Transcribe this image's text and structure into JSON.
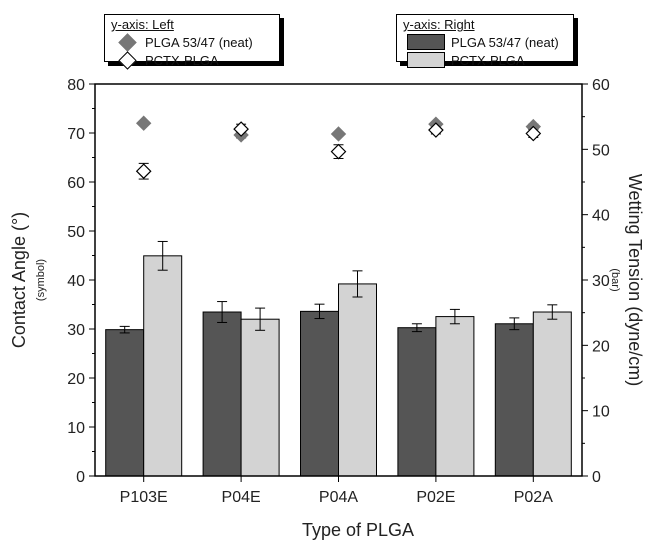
{
  "chart_data": {
    "type": "bar",
    "xlabel": "Type of PLGA",
    "ylabel_left": "Contact Angle (°)",
    "ylabel_left_sub": "(symbol)",
    "ylabel_right": "Wetting Tension (dyne/cm)",
    "ylabel_right_sub": "(bar)",
    "categories": [
      "P103E",
      "P04E",
      "P04A",
      "P02E",
      "P02A"
    ],
    "ylim_left": [
      0,
      80
    ],
    "ylim_right": [
      0,
      60
    ],
    "yticks_left": [
      0,
      10,
      20,
      30,
      40,
      50,
      60,
      70,
      80
    ],
    "yticks_right": [
      0,
      10,
      20,
      30,
      40,
      50,
      60
    ],
    "bar_series": [
      {
        "name": "PLGA 53/47 (neat)",
        "color": "#555555",
        "values": [
          22.4,
          25.1,
          25.2,
          22.7,
          23.3
        ],
        "errors": [
          0.5,
          1.6,
          1.1,
          0.6,
          0.9
        ]
      },
      {
        "name": "PCTX-PLGA",
        "color": "#d3d3d3",
        "values": [
          33.7,
          24.0,
          29.4,
          24.4,
          25.1
        ],
        "errors": [
          2.2,
          1.7,
          2.0,
          1.1,
          1.1
        ]
      }
    ],
    "symbol_series": [
      {
        "name": "PLGA 53/47 (neat)",
        "marker": "filled-diamond",
        "color": "#777777",
        "values": [
          72.0,
          69.6,
          69.8,
          71.8,
          71.3
        ],
        "errors": [
          0.3,
          0.6,
          0.4,
          0.4,
          0.5
        ]
      },
      {
        "name": "PCTX-PLGA",
        "marker": "open-diamond",
        "color": "#000000",
        "values": [
          62.2,
          70.8,
          66.2,
          70.6,
          69.9
        ],
        "errors": [
          1.6,
          1.0,
          1.4,
          0.8,
          0.8
        ]
      }
    ],
    "legend_left": {
      "title": "y-axis: Left",
      "entries": [
        "PLGA 53/47 (neat)",
        "PCTX-PLGA"
      ]
    },
    "legend_right": {
      "title": "y-axis: Right",
      "entries": [
        "PLGA 53/47 (neat)",
        "PCTX-PLGA"
      ]
    },
    "grid": false
  }
}
